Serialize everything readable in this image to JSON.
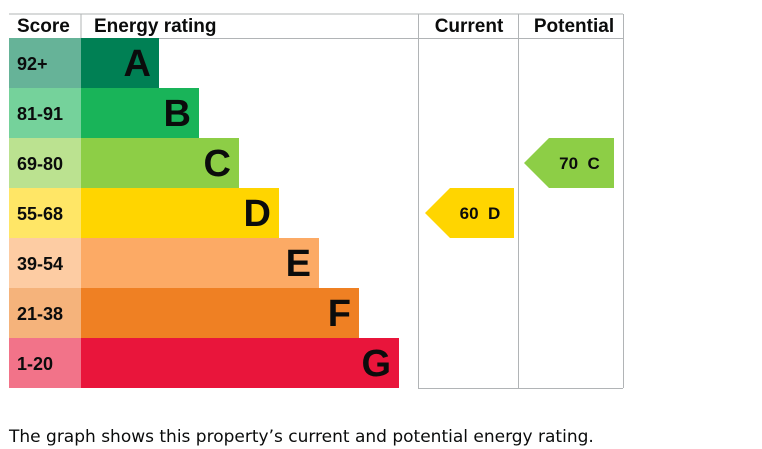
{
  "chart_data": {
    "type": "bar",
    "headers": {
      "score": "Score",
      "rating": "Energy rating",
      "current": "Current",
      "potential": "Potential"
    },
    "bands": [
      {
        "score": "92+",
        "letter": "A",
        "band_color": "#008054",
        "score_color": "#66b398",
        "rank": 1
      },
      {
        "score": "81-91",
        "letter": "B",
        "band_color": "#19b459",
        "score_color": "#75d29b",
        "rank": 2
      },
      {
        "score": "69-80",
        "letter": "C",
        "band_color": "#8dce46",
        "score_color": "#bbe290",
        "rank": 3
      },
      {
        "score": "55-68",
        "letter": "D",
        "band_color": "#ffd500",
        "score_color": "#ffe666",
        "rank": 4
      },
      {
        "score": "39-54",
        "letter": "E",
        "band_color": "#fcaa65",
        "score_color": "#fdcca3",
        "rank": 5
      },
      {
        "score": "21-38",
        "letter": "F",
        "band_color": "#ef8023",
        "score_color": "#f5b37b",
        "rank": 6
      },
      {
        "score": "1-20",
        "letter": "G",
        "band_color": "#e9153b",
        "score_color": "#f27389",
        "rank": 7
      }
    ],
    "current": {
      "value": 60,
      "letter": "D",
      "label": "60  D",
      "color": "#ffd500"
    },
    "potential": {
      "value": 70,
      "letter": "C",
      "label": "70  C",
      "color": "#8dce46"
    }
  },
  "caption": "The graph shows this property’s current and potential energy rating."
}
